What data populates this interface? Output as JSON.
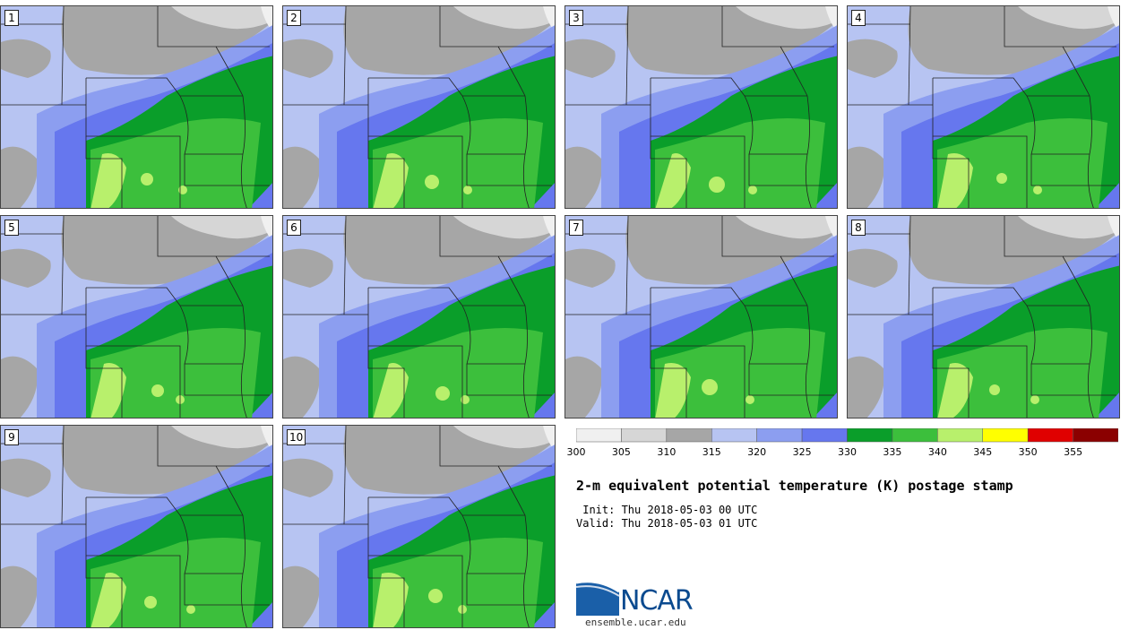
{
  "panels": [
    "1",
    "2",
    "3",
    "4",
    "5",
    "6",
    "7",
    "8",
    "9",
    "10"
  ],
  "colorbar": {
    "ticks": [
      "300",
      "305",
      "310",
      "315",
      "320",
      "325",
      "330",
      "335",
      "340",
      "345",
      "350",
      "355"
    ],
    "colors": [
      "#f0f0f0",
      "#d6d6d6",
      "#a6a6a6",
      "#b7c4f2",
      "#8c9ef0",
      "#6677ee",
      "#0a9e2a",
      "#3cbf3c",
      "#b8f06c",
      "#ffff00",
      "#e00000",
      "#8b0000"
    ]
  },
  "title": "2-m equivalent potential temperature (K) postage stamp",
  "init_line": " Init: Thu 2018-05-03 00 UTC",
  "valid_line": "Valid: Thu 2018-05-03 01 UTC",
  "logo": {
    "text": "NCAR",
    "site": "ensemble.ucar.edu"
  }
}
